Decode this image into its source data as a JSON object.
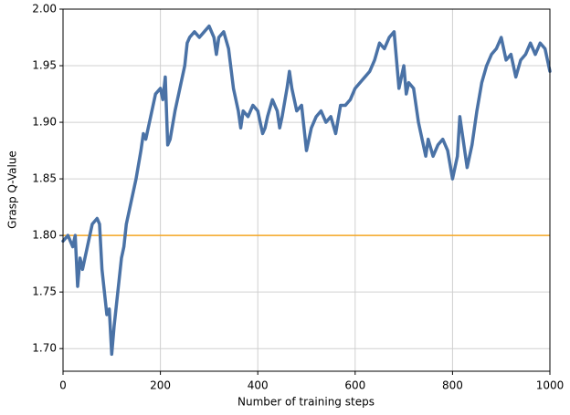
{
  "chart_data": {
    "type": "line",
    "xlabel": "Number of training steps",
    "ylabel": "Grasp Q-Value",
    "x": [
      0,
      10,
      20,
      25,
      30,
      35,
      40,
      50,
      55,
      60,
      70,
      75,
      80,
      85,
      90,
      95,
      100,
      105,
      110,
      115,
      120,
      125,
      130,
      140,
      150,
      160,
      165,
      170,
      180,
      190,
      200,
      205,
      210,
      215,
      220,
      230,
      240,
      250,
      255,
      260,
      270,
      280,
      290,
      300,
      310,
      315,
      320,
      330,
      340,
      350,
      360,
      365,
      370,
      380,
      390,
      400,
      410,
      415,
      420,
      430,
      440,
      445,
      450,
      460,
      465,
      470,
      480,
      490,
      500,
      510,
      520,
      530,
      540,
      550,
      560,
      570,
      580,
      590,
      600,
      610,
      620,
      630,
      640,
      650,
      660,
      670,
      680,
      690,
      700,
      705,
      710,
      720,
      730,
      740,
      745,
      750,
      760,
      770,
      780,
      790,
      800,
      810,
      815,
      820,
      830,
      840,
      850,
      860,
      870,
      880,
      890,
      900,
      910,
      920,
      930,
      940,
      950,
      960,
      970,
      980,
      990,
      1000
    ],
    "series": [
      {
        "color": "#4a72a6",
        "values": [
          1.795,
          1.8,
          1.79,
          1.8,
          1.755,
          1.78,
          1.77,
          1.79,
          1.8,
          1.81,
          1.815,
          1.81,
          1.77,
          1.75,
          1.73,
          1.735,
          1.695,
          1.72,
          1.74,
          1.76,
          1.78,
          1.79,
          1.81,
          1.83,
          1.85,
          1.875,
          1.89,
          1.885,
          1.905,
          1.925,
          1.93,
          1.92,
          1.94,
          1.88,
          1.885,
          1.91,
          1.93,
          1.95,
          1.97,
          1.975,
          1.98,
          1.975,
          1.98,
          1.985,
          1.975,
          1.96,
          1.975,
          1.98,
          1.965,
          1.93,
          1.91,
          1.895,
          1.91,
          1.905,
          1.915,
          1.91,
          1.89,
          1.895,
          1.905,
          1.92,
          1.91,
          1.895,
          1.905,
          1.93,
          1.945,
          1.93,
          1.91,
          1.915,
          1.875,
          1.895,
          1.905,
          1.91,
          1.9,
          1.905,
          1.89,
          1.915,
          1.915,
          1.92,
          1.93,
          1.935,
          1.94,
          1.945,
          1.955,
          1.97,
          1.965,
          1.975,
          1.98,
          1.93,
          1.95,
          1.925,
          1.935,
          1.93,
          1.9,
          1.88,
          1.87,
          1.885,
          1.87,
          1.88,
          1.885,
          1.875,
          1.85,
          1.87,
          1.905,
          1.89,
          1.86,
          1.88,
          1.91,
          1.935,
          1.95,
          1.96,
          1.965,
          1.975,
          1.955,
          1.96,
          1.94,
          1.955,
          1.96,
          1.97,
          1.96,
          1.97,
          1.965,
          1.945
        ]
      }
    ],
    "reference_line": {
      "value": 1.8,
      "color": "#f5a623"
    },
    "xlim": [
      0,
      1000
    ],
    "ylim": [
      1.68,
      2.0
    ],
    "xticks": [
      0,
      200,
      400,
      600,
      800,
      1000
    ],
    "yticks": [
      {
        "value": 1.7,
        "label": "1.70"
      },
      {
        "value": 1.75,
        "label": "1.75"
      },
      {
        "value": 1.8,
        "label": "1.80"
      },
      {
        "value": 1.85,
        "label": "1.85"
      },
      {
        "value": 1.9,
        "label": "1.90"
      },
      {
        "value": 1.95,
        "label": "1.95"
      },
      {
        "value": 2.0,
        "label": "2.00"
      }
    ],
    "grid": true
  }
}
